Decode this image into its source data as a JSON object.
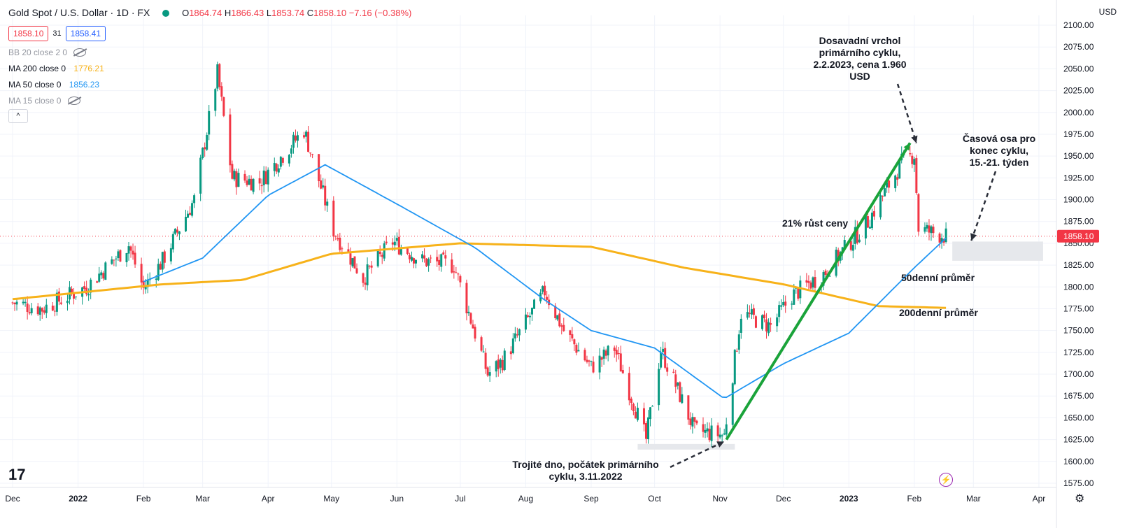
{
  "header": {
    "title": "Gold Spot / U.S. Dollar · 1D · FX",
    "ohlc": [
      {
        "k": "O",
        "v": "1864.74"
      },
      {
        "k": "H",
        "v": "1866.43"
      },
      {
        "k": "L",
        "v": "1853.74"
      },
      {
        "k": "C",
        "v": "1858.10"
      }
    ],
    "change": "−7.16 (−0.38%)",
    "sell_price": "1858.10",
    "spread": "31",
    "buy_price": "1858.41"
  },
  "indicators": [
    {
      "label": "BB 20 close 2 0",
      "value": "",
      "hidden": true
    },
    {
      "label": "MA 200 close 0",
      "value": "1776.21",
      "color": "#f7b21a"
    },
    {
      "label": "MA 50 close 0",
      "value": "1856.23",
      "color": "#2196f3"
    },
    {
      "label": "MA 15 close 0",
      "value": "",
      "hidden": true
    }
  ],
  "collapse_label": "^",
  "currency": "USD",
  "current_price_label": "1858.10",
  "logo_text": "17",
  "gear_symbol": "⚙",
  "bolt_symbol": "⚡",
  "annotations": {
    "peak": "Dosavadní vrchol primárního cyklu, 2.2.2023, cena 1.960 USD",
    "cycle_end": "Časová osa pro konec cyklu, 15.-21. týden",
    "growth": "21% růst ceny",
    "ma50": "50denní průměr",
    "ma200": "200denní průměr",
    "bottom": "Trojité dno, počátek primárního cyklu, 3.11.2022"
  },
  "colors": {
    "up": "#089981",
    "down": "#f23645",
    "ma50": "#2196f3",
    "ma200": "#f7b21a",
    "trend": "#1aa33a"
  },
  "chart_data": {
    "type": "candlestick",
    "title": "Gold Spot / U.S. Dollar",
    "y_axis": {
      "ylim": [
        1575,
        2100
      ],
      "ticks": [
        "1575.00",
        "1600.00",
        "1625.00",
        "1650.00",
        "1675.00",
        "1700.00",
        "1725.00",
        "1750.00",
        "1775.00",
        "1800.00",
        "1825.00",
        "1850.00",
        "1875.00",
        "1900.00",
        "1925.00",
        "1950.00",
        "1975.00",
        "2000.00",
        "2025.00",
        "2050.00",
        "2075.00",
        "2100.00"
      ]
    },
    "x_axis": {
      "range": [
        "2021-12-01",
        "2023-04-06"
      ],
      "ticks": [
        {
          "label": "Dec",
          "date": "2021-12-01"
        },
        {
          "label": "2022",
          "date": "2022-01-01",
          "bold": true
        },
        {
          "label": "Feb",
          "date": "2022-02-01"
        },
        {
          "label": "Mar",
          "date": "2022-03-01"
        },
        {
          "label": "Apr",
          "date": "2022-04-01"
        },
        {
          "label": "May",
          "date": "2022-05-01"
        },
        {
          "label": "Jun",
          "date": "2022-06-01"
        },
        {
          "label": "Jul",
          "date": "2022-07-01"
        },
        {
          "label": "Aug",
          "date": "2022-08-01"
        },
        {
          "label": "Sep",
          "date": "2022-09-01"
        },
        {
          "label": "Oct",
          "date": "2022-10-01"
        },
        {
          "label": "Nov",
          "date": "2022-11-01"
        },
        {
          "label": "Dec",
          "date": "2022-12-01"
        },
        {
          "label": "2023",
          "date": "2023-01-01",
          "bold": true
        },
        {
          "label": "Feb",
          "date": "2023-02-01"
        },
        {
          "label": "Mar",
          "date": "2023-03-01"
        },
        {
          "label": "Apr",
          "date": "2023-04-01"
        }
      ]
    },
    "close_anchors": [
      [
        "2021-12-01",
        1782
      ],
      [
        "2021-12-15",
        1775
      ],
      [
        "2022-01-05",
        1800
      ],
      [
        "2022-01-25",
        1848
      ],
      [
        "2022-02-01",
        1798
      ],
      [
        "2022-02-10",
        1830
      ],
      [
        "2022-02-25",
        1900
      ],
      [
        "2022-03-08",
        2045
      ],
      [
        "2022-03-15",
        1925
      ],
      [
        "2022-03-28",
        1920
      ],
      [
        "2022-04-18",
        1980
      ],
      [
        "2022-05-02",
        1865
      ],
      [
        "2022-05-16",
        1810
      ],
      [
        "2022-05-30",
        1852
      ],
      [
        "2022-06-13",
        1830
      ],
      [
        "2022-06-28",
        1825
      ],
      [
        "2022-07-14",
        1700
      ],
      [
        "2022-07-21",
        1715
      ],
      [
        "2022-08-10",
        1795
      ],
      [
        "2022-08-19",
        1750
      ],
      [
        "2022-09-01",
        1708
      ],
      [
        "2022-09-12",
        1730
      ],
      [
        "2022-09-27",
        1625
      ],
      [
        "2022-10-04",
        1728
      ],
      [
        "2022-10-20",
        1635
      ],
      [
        "2022-11-03",
        1630
      ],
      [
        "2022-11-11",
        1770
      ],
      [
        "2022-11-25",
        1755
      ],
      [
        "2022-12-05",
        1790
      ],
      [
        "2022-12-20",
        1815
      ],
      [
        "2023-01-10",
        1875
      ],
      [
        "2023-01-26",
        1942
      ],
      [
        "2023-02-01",
        1952
      ],
      [
        "2023-02-03",
        1867
      ],
      [
        "2023-02-10",
        1862
      ],
      [
        "2023-02-16",
        1858
      ]
    ],
    "ma200_anchors": [
      [
        "2021-12-01",
        1786
      ],
      [
        "2022-02-10",
        1803
      ],
      [
        "2022-03-20",
        1808
      ],
      [
        "2022-05-01",
        1838
      ],
      [
        "2022-07-01",
        1850
      ],
      [
        "2022-09-01",
        1846
      ],
      [
        "2022-10-15",
        1822
      ],
      [
        "2022-12-01",
        1803
      ],
      [
        "2023-01-15",
        1778
      ],
      [
        "2023-02-16",
        1776
      ]
    ],
    "ma50_anchors": [
      [
        "2022-02-01",
        1806
      ],
      [
        "2022-03-01",
        1833
      ],
      [
        "2022-04-01",
        1905
      ],
      [
        "2022-04-28",
        1940
      ],
      [
        "2022-06-01",
        1895
      ],
      [
        "2022-07-08",
        1845
      ],
      [
        "2022-08-10",
        1785
      ],
      [
        "2022-09-01",
        1750
      ],
      [
        "2022-10-01",
        1730
      ],
      [
        "2022-11-03",
        1672
      ],
      [
        "2022-12-01",
        1712
      ],
      [
        "2023-01-01",
        1747
      ],
      [
        "2023-02-01",
        1822
      ],
      [
        "2023-02-16",
        1856
      ]
    ],
    "annotation_points": {
      "peak_date": "2023-02-02",
      "peak_price": 1960,
      "bottom_date": "2022-11-03",
      "bottom_price": 1618,
      "trend_start": [
        "2022-11-04",
        1625
      ],
      "trend_end": [
        "2023-01-30",
        1965
      ],
      "cycle_zone_date": "2023-02-28"
    }
  }
}
